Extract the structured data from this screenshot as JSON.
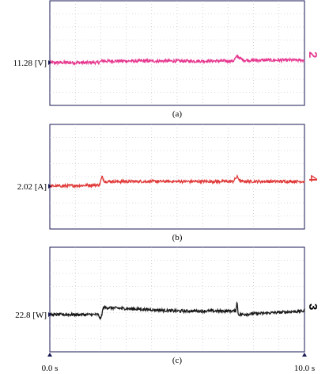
{
  "chart_data": [
    {
      "type": "line",
      "caption": "(a)",
      "level_label": "11.28 [V]",
      "channel_marker": "2",
      "color": "#e6388f",
      "x": [
        0,
        1.9,
        2.05,
        5.0,
        7.2,
        7.35,
        7.6,
        10.0
      ],
      "values": [
        11.28,
        11.28,
        11.3,
        11.3,
        11.3,
        11.36,
        11.31,
        11.31
      ],
      "noise": 0.02
    },
    {
      "type": "line",
      "caption": "(b)",
      "level_label": "2.02 [A]",
      "channel_marker": "4",
      "color": "#e03a3a",
      "x": [
        0,
        1.95,
        2.05,
        2.15,
        5.0,
        7.2,
        7.35,
        7.5,
        10.0
      ],
      "values": [
        2.02,
        2.03,
        2.1,
        2.06,
        2.06,
        2.06,
        2.1,
        2.06,
        2.06
      ],
      "noise": 0.012
    },
    {
      "type": "line",
      "caption": "(c)",
      "level_label": "22.8 [W]",
      "channel_marker": "3",
      "color": "#1a1a1a",
      "x": [
        0,
        1.9,
        2.0,
        2.1,
        5.0,
        7.3,
        7.35,
        7.4,
        10.0
      ],
      "values": [
        22.8,
        22.8,
        22.6,
        23.1,
        22.95,
        22.95,
        23.35,
        22.8,
        22.95
      ],
      "noise": 0.06
    }
  ],
  "x_axis": {
    "start_label": "0.0 s",
    "end_label": "10.0 s",
    "range": [
      0,
      10
    ]
  },
  "grid": true
}
